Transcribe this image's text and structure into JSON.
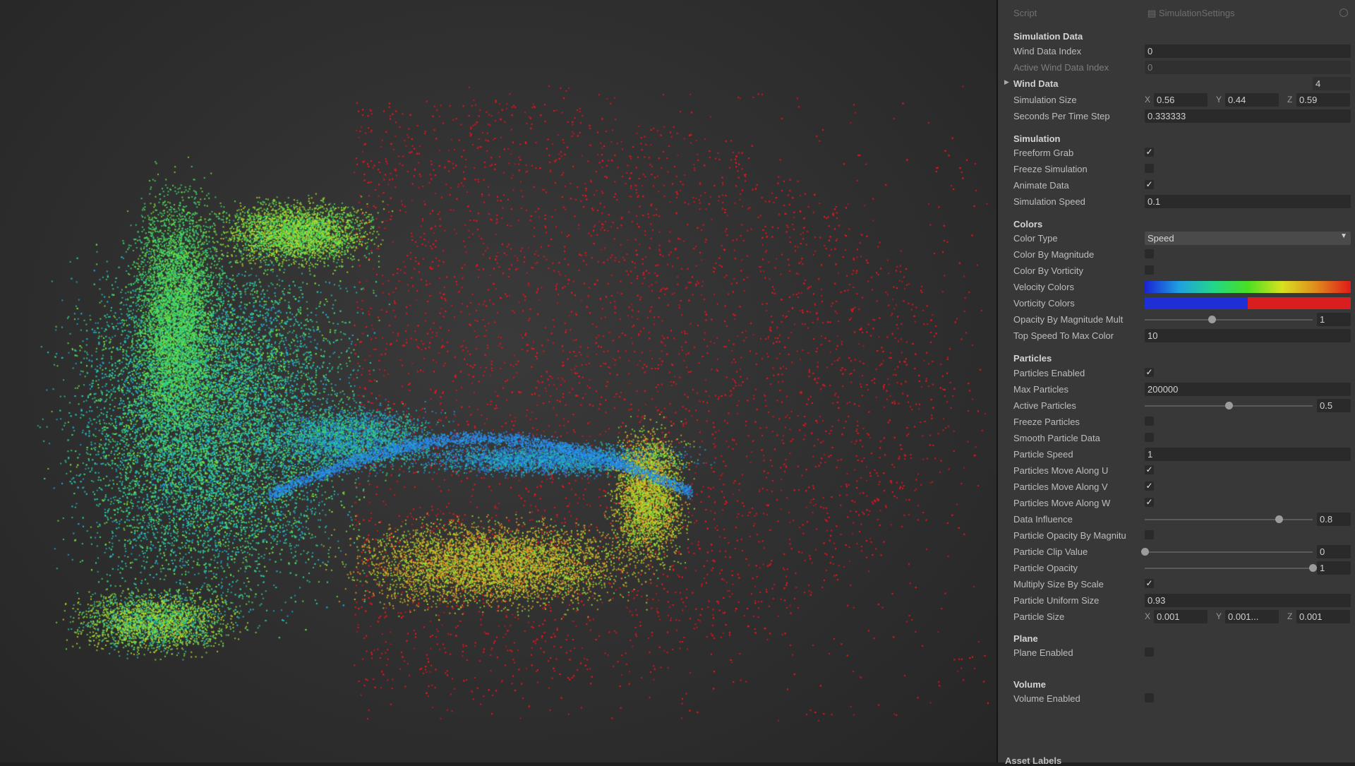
{
  "script": {
    "label": "Script",
    "value": "SimulationSettings"
  },
  "sections": {
    "simulation_data": "Simulation Data",
    "simulation": "Simulation",
    "colors": "Colors",
    "particles": "Particles",
    "plane": "Plane",
    "volume": "Volume"
  },
  "fields": {
    "wind_data_index": {
      "label": "Wind Data Index",
      "value": "0"
    },
    "active_wind_data_index": {
      "label": "Active Wind Data Index",
      "value": "0"
    },
    "wind_data": {
      "label": "Wind Data",
      "count": "4"
    },
    "simulation_size": {
      "label": "Simulation Size",
      "x": "0.56",
      "y": "0.44",
      "z": "0.59"
    },
    "seconds_per_time_step": {
      "label": "Seconds Per Time Step",
      "value": "0.333333"
    },
    "freeform_grab": {
      "label": "Freeform Grab",
      "checked": true
    },
    "freeze_simulation": {
      "label": "Freeze Simulation",
      "checked": false
    },
    "animate_data": {
      "label": "Animate Data",
      "checked": true
    },
    "simulation_speed": {
      "label": "Simulation Speed",
      "value": "0.1"
    },
    "color_type": {
      "label": "Color Type",
      "value": "Speed"
    },
    "color_by_magnitude": {
      "label": "Color By Magnitude",
      "checked": false
    },
    "color_by_vorticity": {
      "label": "Color By Vorticity",
      "checked": false
    },
    "velocity_colors": {
      "label": "Velocity Colors"
    },
    "vorticity_colors": {
      "label": "Vorticity Colors"
    },
    "opacity_by_magnitude_mult": {
      "label": "Opacity By Magnitude Mult",
      "value": "1",
      "fraction": 0.4
    },
    "top_speed_to_max_color": {
      "label": "Top Speed To Max Color",
      "value": "10"
    },
    "particles_enabled": {
      "label": "Particles Enabled",
      "checked": true
    },
    "max_particles": {
      "label": "Max Particles",
      "value": "200000"
    },
    "active_particles": {
      "label": "Active Particles",
      "value": "0.5",
      "fraction": 0.5
    },
    "freeze_particles": {
      "label": "Freeze Particles",
      "checked": false
    },
    "smooth_particle_data": {
      "label": "Smooth Particle Data",
      "checked": false
    },
    "particle_speed": {
      "label": "Particle Speed",
      "value": "1"
    },
    "particles_move_along_u": {
      "label": "Particles Move Along U",
      "checked": true
    },
    "particles_move_along_v": {
      "label": "Particles Move Along V",
      "checked": true
    },
    "particles_move_along_w": {
      "label": "Particles Move Along W",
      "checked": true
    },
    "data_influence": {
      "label": "Data Influence",
      "value": "0.8",
      "fraction": 0.8
    },
    "particle_opacity_by_magnitude": {
      "label": "Particle Opacity By Magnitu",
      "checked": false
    },
    "particle_clip_value": {
      "label": "Particle Clip Value",
      "value": "0",
      "fraction": 0.0
    },
    "particle_opacity": {
      "label": "Particle Opacity",
      "value": "1",
      "fraction": 1.0
    },
    "multiply_size_by_scale": {
      "label": "Multiply Size By Scale",
      "checked": true
    },
    "particle_uniform_size": {
      "label": "Particle Uniform Size",
      "value": "0.93"
    },
    "particle_size": {
      "label": "Particle Size",
      "x": "0.001",
      "y": "0.001...",
      "z": "0.001"
    },
    "plane_enabled": {
      "label": "Plane Enabled",
      "checked": false
    },
    "volume_enabled": {
      "label": "Volume Enabled",
      "checked": false
    }
  },
  "footer": {
    "asset_labels": "Asset Labels"
  },
  "colors": {
    "inspector_bg": "#383838",
    "viewport_bg": "#2f2f2f",
    "velocity_gradient": [
      "#1a22d6",
      "#1fa0e0",
      "#22d68a",
      "#49e021",
      "#d9e020",
      "#e08a1c",
      "#e01a1a"
    ],
    "vorticity_gradient": [
      "#1e2fd8",
      "#d81e1e"
    ]
  }
}
